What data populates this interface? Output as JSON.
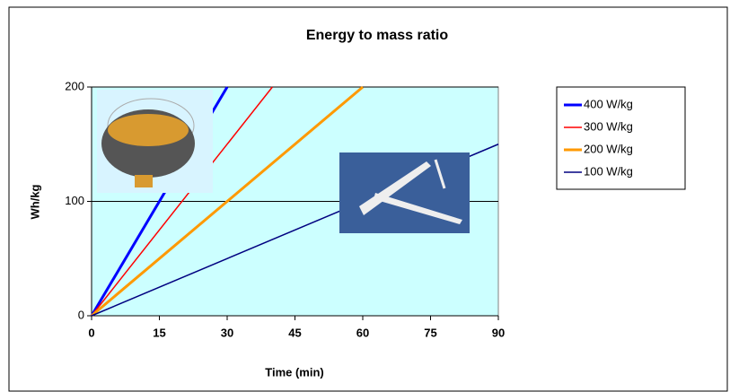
{
  "chart_data": {
    "type": "line",
    "title": "Energy to mass ratio",
    "x_label": "Time (min)",
    "y_label": "Wh/kg",
    "xlim": [
      0,
      90
    ],
    "xticks": [
      0,
      15,
      30,
      45,
      60,
      75,
      90
    ],
    "ylim": [
      0,
      200
    ],
    "yticks": [
      0,
      100,
      200
    ],
    "grid": true,
    "legend": "right",
    "series": [
      {
        "name": "400 W/kg",
        "color": "#0000ff",
        "x": [
          0,
          30
        ],
        "values": [
          0,
          200
        ]
      },
      {
        "name": "300 W/kg",
        "color": "#ff0000",
        "x": [
          0,
          40
        ],
        "values": [
          0,
          200
        ]
      },
      {
        "name": "200 W/kg",
        "color": "#ff9900",
        "x": [
          0,
          60
        ],
        "values": [
          0,
          200
        ]
      },
      {
        "name": "100 W/kg",
        "color": "#000080",
        "x": [
          0,
          90
        ],
        "values": [
          0,
          150
        ]
      }
    ]
  }
}
